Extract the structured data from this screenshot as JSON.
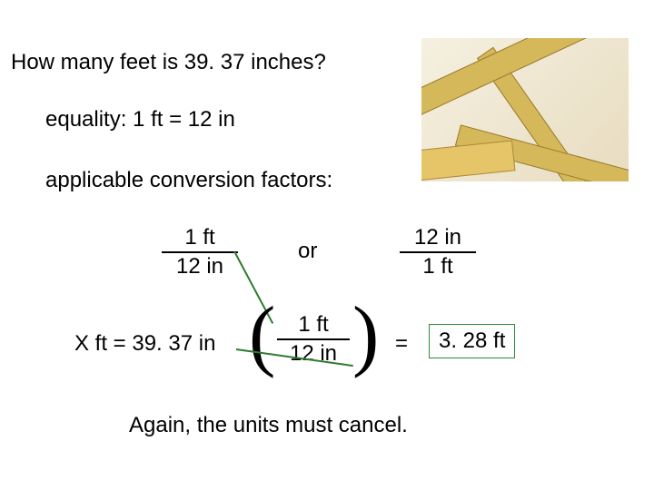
{
  "question": "How many feet is 39. 37 inches?",
  "equality": "equality:  1 ft = 12 in",
  "factors_label": "applicable conversion factors:",
  "frac1": {
    "n": "1 ft",
    "d": "12 in"
  },
  "or": "or",
  "frac2": {
    "n": "12 in",
    "d": "1 ft"
  },
  "eq_lhs": "X ft = 39. 37 in",
  "frac3": {
    "n": "1 ft",
    "d": "12 in"
  },
  "eqsign": "=",
  "answer": "3. 28 ft",
  "bottom": "Again, the units must cancel.",
  "colors": {
    "answer_border": "#2f8a3f",
    "cancel_line": "#2f7a2f",
    "background": "#ffffff",
    "text": "#000000"
  }
}
